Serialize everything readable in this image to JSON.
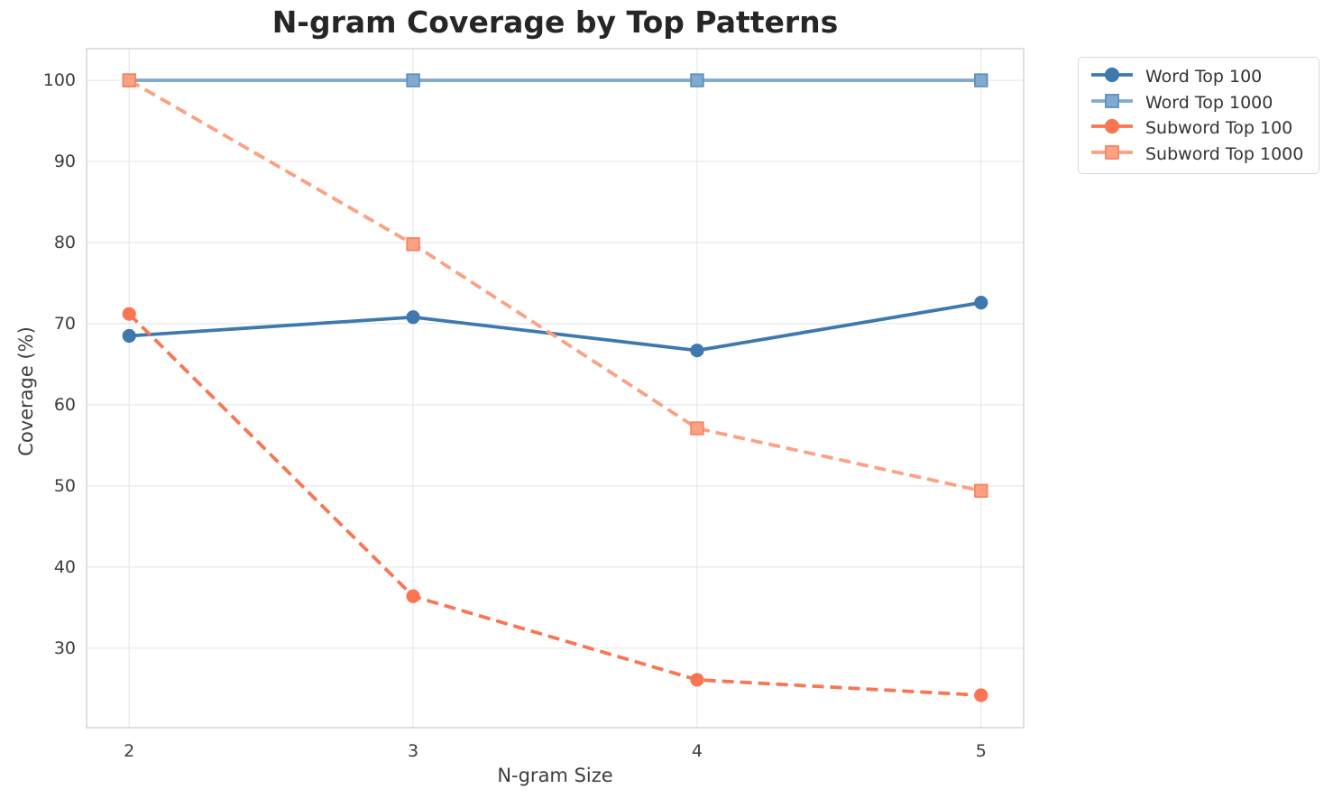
{
  "chart_data": {
    "type": "line",
    "title": "N-gram Coverage by Top Patterns",
    "xlabel": "N-gram Size",
    "ylabel": "Coverage (%)",
    "x": [
      2,
      3,
      4,
      5
    ],
    "xticks": [
      "2",
      "3",
      "4",
      "5"
    ],
    "yticks": [
      "30",
      "40",
      "50",
      "60",
      "70",
      "80",
      "90",
      "100"
    ],
    "ytick_values": [
      30,
      40,
      50,
      60,
      70,
      80,
      90,
      100
    ],
    "xlim": [
      1.85,
      5.15
    ],
    "ylim": [
      20.2,
      103.9
    ],
    "grid": true,
    "legend_position": "outside-upper-right",
    "series": [
      {
        "name": "Word Top 100",
        "values": [
          68.5,
          70.8,
          66.7,
          72.6
        ],
        "color": "#3E79AE",
        "marker": "circle",
        "marker_edge": "#3E79AE",
        "line_style": "solid"
      },
      {
        "name": "Word Top 1000",
        "values": [
          100.0,
          100.0,
          100.0,
          100.0
        ],
        "color": "#82AACF",
        "marker": "square",
        "marker_edge": "#5C90C1",
        "line_style": "solid"
      },
      {
        "name": "Subword Top 100",
        "values": [
          71.2,
          36.4,
          26.1,
          24.2
        ],
        "color": "#FA7553",
        "marker": "circle",
        "marker_edge": "#FA7553",
        "line_style": "dashed"
      },
      {
        "name": "Subword Top 1000",
        "values": [
          100.0,
          79.8,
          57.1,
          49.4
        ],
        "color": "#FCA182",
        "marker": "square",
        "marker_edge": "#FA8260",
        "line_style": "dashed"
      }
    ],
    "colors": {
      "background": "#FFFFFF",
      "grid": "#E8E8E8",
      "spine": "#D2D2D2",
      "title": "#262626",
      "tick": "#3D3D3D",
      "axis_label": "#3D3D3D",
      "legend_border": "#D8D8D8",
      "legend_text": "#333333"
    }
  }
}
